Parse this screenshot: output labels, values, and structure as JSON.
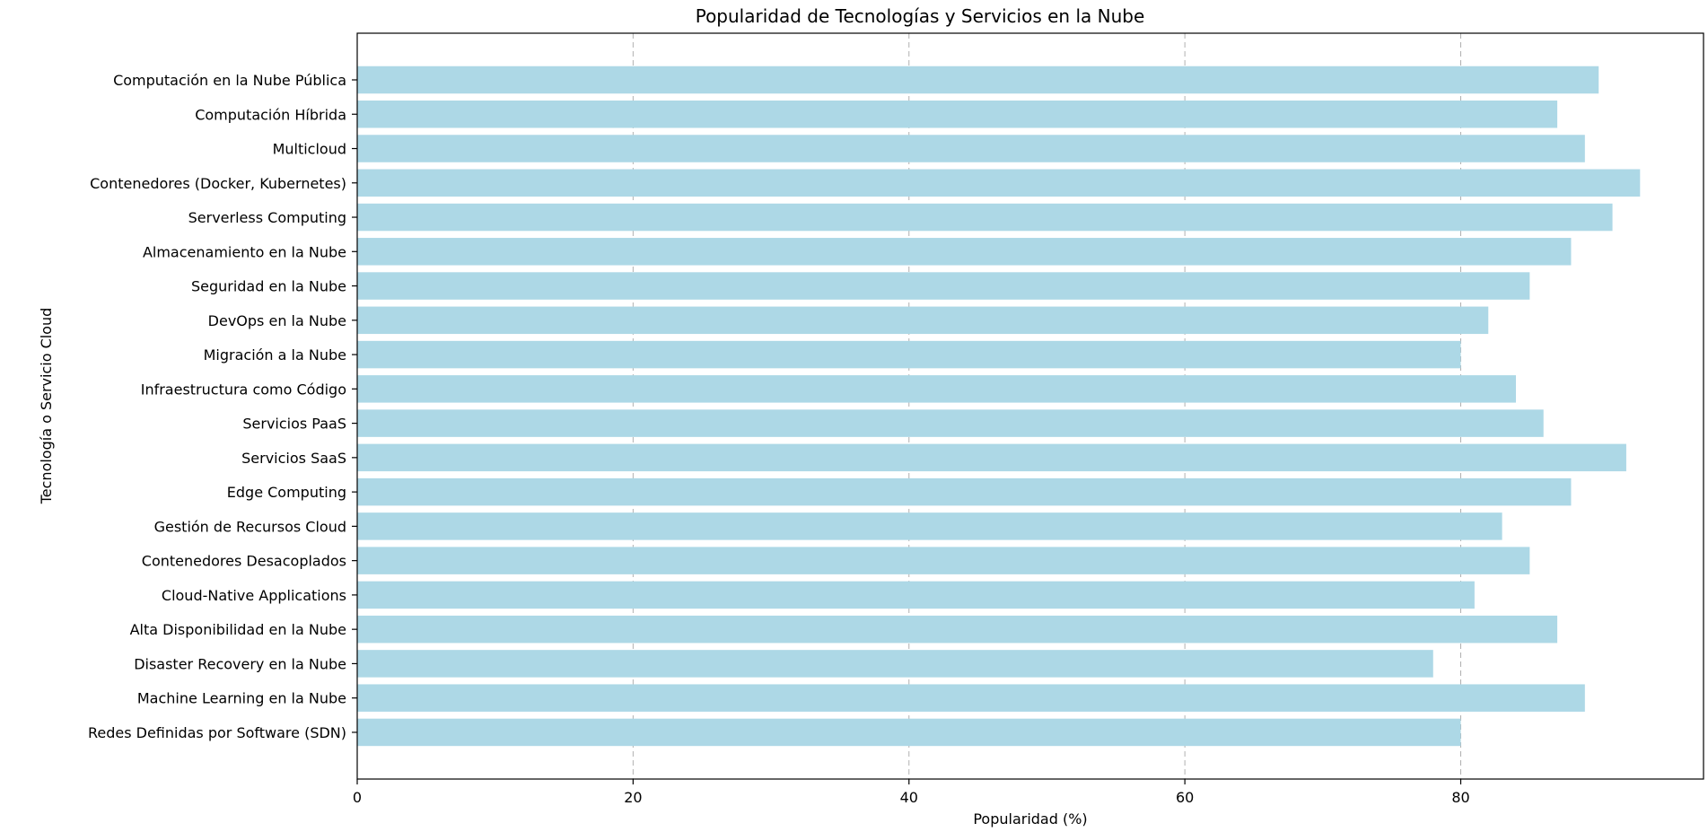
{
  "chart_data": {
    "type": "bar",
    "orientation": "horizontal",
    "title": "Popularidad de Tecnologías y Servicios en la Nube",
    "xlabel": "Popularidad (%)",
    "ylabel": "Tecnología o Servicio Cloud",
    "xlim": [
      0,
      97.6
    ],
    "xticks": [
      0,
      20,
      40,
      60,
      80
    ],
    "grid": "x-dashed",
    "bar_color": "#add8e6",
    "categories": [
      "Computación en la Nube Pública",
      "Computación Híbrida",
      "Multicloud",
      "Contenedores (Docker, Kubernetes)",
      "Serverless Computing",
      "Almacenamiento en la Nube",
      "Seguridad en la Nube",
      "DevOps en la Nube",
      "Migración a la Nube",
      "Infraestructura como Código",
      "Servicios PaaS",
      "Servicios SaaS",
      "Edge Computing",
      "Gestión de Recursos Cloud",
      "Contenedores Desacoplados",
      "Cloud-Native Applications",
      "Alta Disponibilidad en la Nube",
      "Disaster Recovery en la Nube",
      "Machine Learning en la Nube",
      "Redes Definidas por Software (SDN)"
    ],
    "values": [
      90,
      87,
      89,
      93,
      91,
      88,
      85,
      82,
      80,
      84,
      86,
      92,
      88,
      83,
      85,
      81,
      87,
      78,
      89,
      80
    ]
  }
}
